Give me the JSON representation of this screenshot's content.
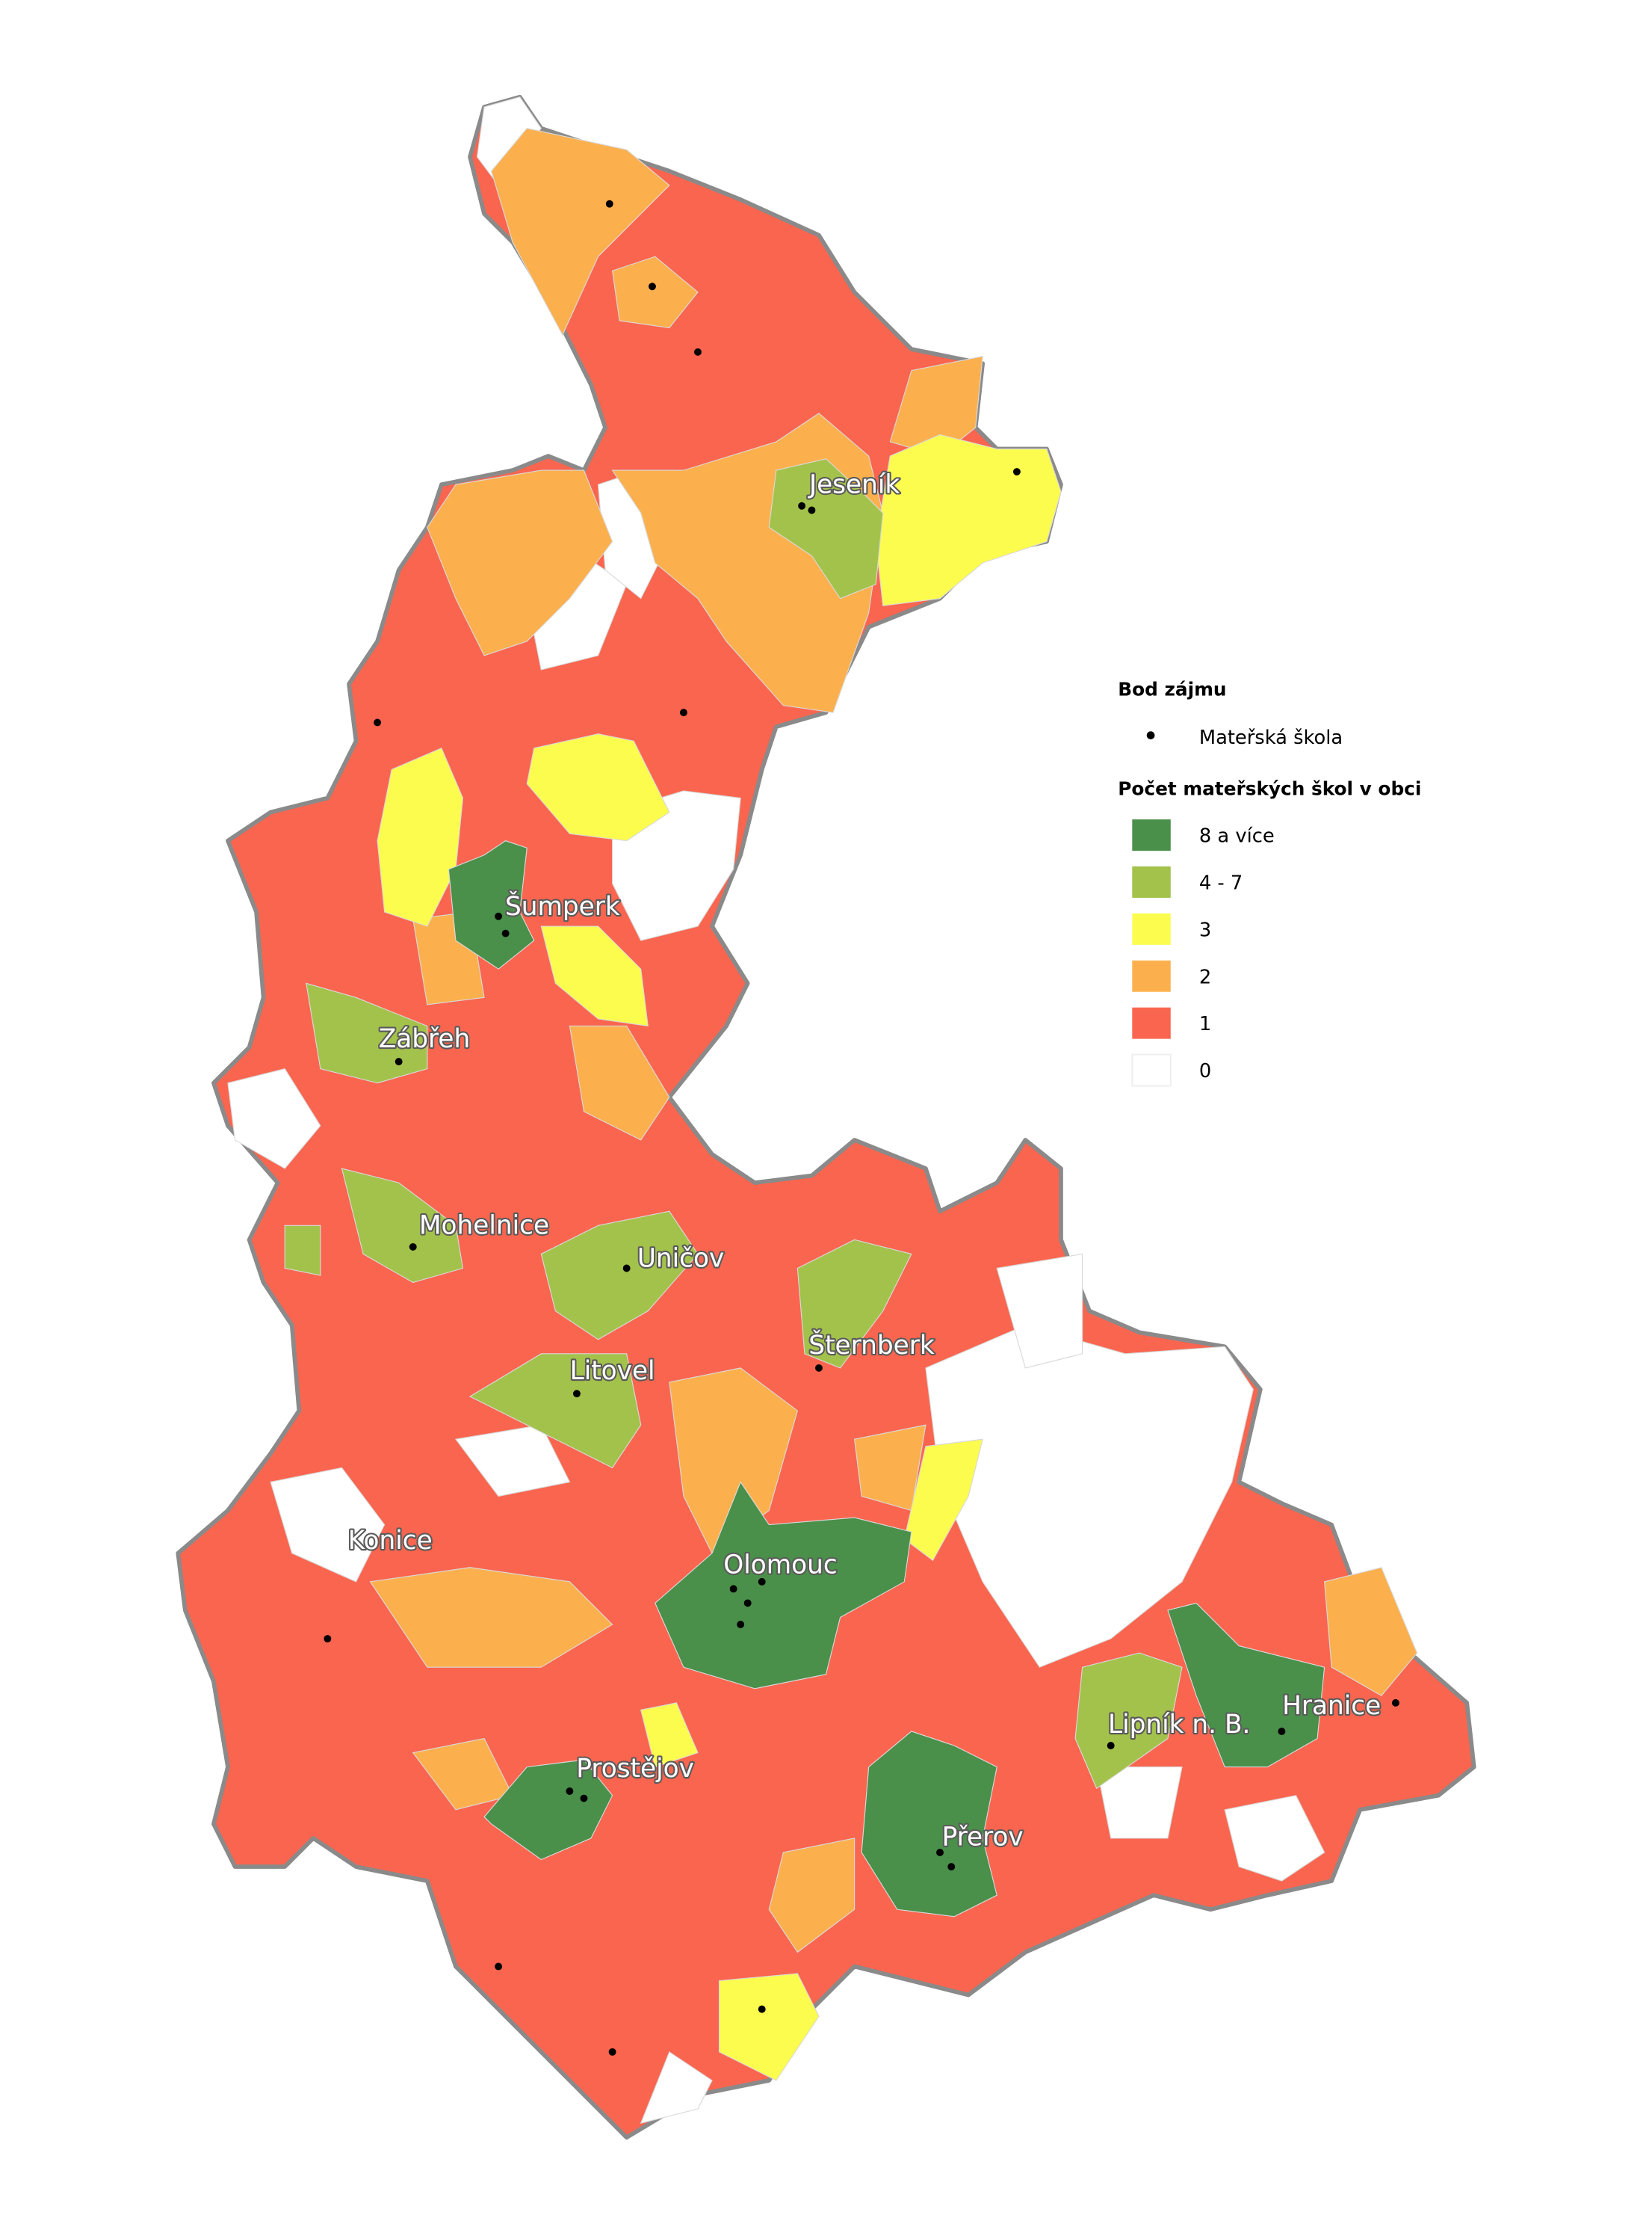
{
  "legend": {
    "point_title": "Bod zájmu",
    "point_item": "Mateřská škola",
    "count_title": "Počet mateřských škol v obci",
    "items": [
      "8 a více",
      "4 - 7",
      "3",
      "2",
      "1",
      "0"
    ]
  },
  "places": [
    "Jeseník",
    "Šumperk",
    "Zábřeh",
    "Mohelnice",
    "Uničov",
    "Šternberk",
    "Litovel",
    "Konice",
    "Olomouc",
    "Lipník n. B.",
    "Hranice",
    "Prostějov",
    "Přerov"
  ]
}
